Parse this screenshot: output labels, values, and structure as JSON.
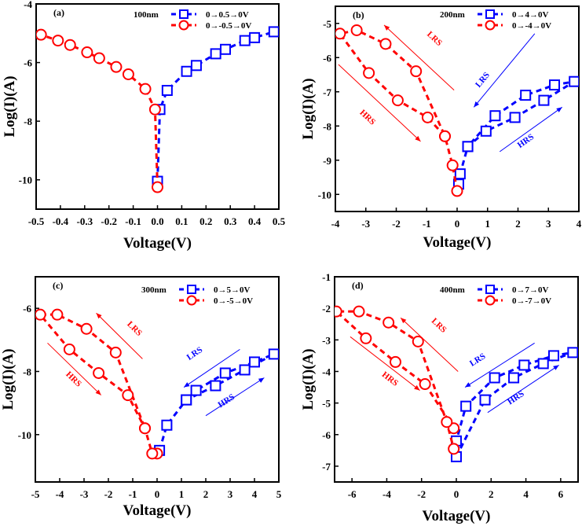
{
  "chart_data": [
    {
      "type": "line",
      "panel_label": "(a)",
      "thickness_label": "100nm",
      "xlabel": "Voltage(V)",
      "ylabel": "Log(I)(A)",
      "xlim": [
        -0.5,
        0.5
      ],
      "ylim": [
        -11,
        -4
      ],
      "xticks": [
        -0.5,
        -0.4,
        -0.3,
        -0.2,
        -0.1,
        0.0,
        0.1,
        0.2,
        0.3,
        0.4,
        0.5
      ],
      "xtick_labels": [
        "-0.5",
        "-0.4",
        "-0.3",
        "-0.2",
        "-0.1",
        "0.0",
        "0.1",
        "0.2",
        "0.3",
        "0.4",
        "0.5"
      ],
      "yticks": [
        -10,
        -8,
        -6,
        -4
      ],
      "ytick_labels": [
        "-10",
        "-8",
        "-6",
        "-4"
      ],
      "legend_position": "top-center",
      "series": [
        {
          "name": "0→0.5→0V",
          "color": "#0000ff",
          "marker": "square",
          "line": "dashed",
          "x": [
            0.0,
            0.01,
            0.04,
            0.12,
            0.16,
            0.24,
            0.28,
            0.36,
            0.4,
            0.48
          ],
          "y": [
            -10.05,
            -7.6,
            -6.95,
            -6.3,
            -6.1,
            -5.7,
            -5.55,
            -5.25,
            -5.15,
            -4.95
          ]
        },
        {
          "name": "0→-0.5→0V",
          "color": "#ff0000",
          "marker": "circle",
          "line": "dashed",
          "x": [
            0.0,
            -0.01,
            -0.05,
            -0.12,
            -0.17,
            -0.24,
            -0.29,
            -0.36,
            -0.41,
            -0.48
          ],
          "y": [
            -10.25,
            -7.6,
            -6.9,
            -6.4,
            -6.15,
            -5.85,
            -5.65,
            -5.4,
            -5.25,
            -5.05
          ]
        }
      ],
      "annotations": []
    },
    {
      "type": "line",
      "panel_label": "(b)",
      "thickness_label": "200nm",
      "xlabel": "Voltage(V)",
      "ylabel": "Log(I)(A)",
      "xlim": [
        -4,
        4
      ],
      "ylim": [
        -10.5,
        -4.5
      ],
      "xticks": [
        -4,
        -3,
        -2,
        -1,
        0,
        1,
        2,
        3,
        4
      ],
      "xtick_labels": [
        "-4",
        "-3",
        "-2",
        "-1",
        "0",
        "1",
        "2",
        "3",
        "4"
      ],
      "yticks": [
        -10,
        -9,
        -8,
        -7,
        -6,
        -5
      ],
      "ytick_labels": [
        "-10",
        "-9",
        "-8",
        "-7",
        "-6",
        "-5"
      ],
      "legend_position": "top-right",
      "series": [
        {
          "name": "0→4→0V",
          "color": "#0000ff",
          "marker": "square",
          "line": "dashed",
          "x": [
            0.05,
            0.1,
            0.35,
            0.95,
            1.9,
            2.85,
            3.85,
            3.2,
            2.25,
            1.25,
            0.35
          ],
          "y": [
            -9.7,
            -9.4,
            -8.6,
            -8.15,
            -7.75,
            -7.25,
            -6.7,
            -6.8,
            -7.1,
            -7.7,
            -8.6
          ]
        },
        {
          "name": "0→-4→0V",
          "color": "#ff0000",
          "marker": "circle",
          "line": "dashed",
          "x": [
            0.0,
            -0.15,
            -0.4,
            -0.97,
            -1.95,
            -2.9,
            -3.85,
            -3.3,
            -2.35,
            -1.35,
            -0.4
          ],
          "y": [
            -9.9,
            -9.15,
            -8.3,
            -7.75,
            -7.25,
            -6.45,
            -5.3,
            -5.2,
            -5.6,
            -6.4,
            -8.3
          ]
        }
      ],
      "annotations": [
        {
          "text": "LRS",
          "color": "#ff0000",
          "arrow": "up-left",
          "from": [
            -0.1,
            -6.95
          ],
          "to": [
            -2.4,
            -5.05
          ],
          "label_at": [
            -0.8,
            -5.5
          ]
        },
        {
          "text": "HRS",
          "color": "#ff0000",
          "arrow": "down-right",
          "from": [
            -3.9,
            -6.2
          ],
          "to": [
            -1.2,
            -8.45
          ],
          "label_at": [
            -3.0,
            -7.8
          ]
        },
        {
          "text": "LRS",
          "color": "#0000ff",
          "arrow": "down-left",
          "from": [
            2.55,
            -5.3
          ],
          "to": [
            0.55,
            -7.45
          ],
          "label_at": [
            0.9,
            -6.7
          ]
        },
        {
          "text": "HRS",
          "color": "#0000ff",
          "arrow": "up-right",
          "from": [
            1.4,
            -8.75
          ],
          "to": [
            3.45,
            -7.45
          ],
          "label_at": [
            2.3,
            -8.5
          ]
        }
      ]
    },
    {
      "type": "line",
      "panel_label": "(c)",
      "thickness_label": "300nm",
      "xlabel": "Voltage(V)",
      "ylabel": "Log(I)(A)",
      "xlim": [
        -5,
        5
      ],
      "ylim": [
        -11.5,
        -5
      ],
      "xticks": [
        -5,
        -4,
        -3,
        -2,
        -1,
        0,
        1,
        2,
        3,
        4,
        5
      ],
      "xtick_labels": [
        "-5",
        "-4",
        "-3",
        "-2",
        "-1",
        "0",
        "1",
        "2",
        "3",
        "4",
        "5"
      ],
      "yticks": [
        -10,
        -8,
        -6
      ],
      "ytick_labels": [
        "-10",
        "-8",
        "-6"
      ],
      "legend_position": "top-right",
      "series": [
        {
          "name": "0→5→0V",
          "color": "#0000ff",
          "marker": "square",
          "line": "dashed",
          "x": [
            0.1,
            0.4,
            1.2,
            2.4,
            3.6,
            4.8,
            4.0,
            2.8,
            1.6,
            1.2
          ],
          "y": [
            -10.5,
            -9.7,
            -8.9,
            -8.45,
            -7.95,
            -7.45,
            -7.7,
            -8.05,
            -8.6,
            -8.9
          ]
        },
        {
          "name": "0→-5→0V",
          "color": "#ff0000",
          "marker": "circle",
          "line": "dashed",
          "x": [
            0.0,
            -0.2,
            -0.5,
            -1.2,
            -2.4,
            -3.6,
            -4.8,
            -4.1,
            -2.9,
            -1.7,
            -0.5
          ],
          "y": [
            -10.6,
            -10.6,
            -9.8,
            -8.75,
            -8.05,
            -7.3,
            -6.2,
            -6.2,
            -6.65,
            -7.4,
            -9.8
          ]
        }
      ],
      "annotations": [
        {
          "text": "LRS",
          "color": "#ff0000",
          "arrow": "up-left",
          "from": [
            -0.6,
            -7.6
          ],
          "to": [
            -2.5,
            -6.15
          ],
          "label_at": [
            -1.0,
            -6.7
          ]
        },
        {
          "text": "HRS",
          "color": "#ff0000",
          "arrow": "down-right",
          "from": [
            -4.5,
            -7.1
          ],
          "to": [
            -2.3,
            -8.75
          ],
          "label_at": [
            -3.5,
            -8.3
          ]
        },
        {
          "text": "LRS",
          "color": "#0000ff",
          "arrow": "down-left",
          "from": [
            3.4,
            -7.3
          ],
          "to": [
            1.1,
            -8.5
          ],
          "label_at": [
            1.6,
            -7.5
          ]
        },
        {
          "text": "HRS",
          "color": "#0000ff",
          "arrow": "up-right",
          "from": [
            2.0,
            -9.4
          ],
          "to": [
            4.4,
            -8.2
          ],
          "label_at": [
            2.9,
            -9.0
          ]
        }
      ]
    },
    {
      "type": "line",
      "panel_label": "(d)",
      "thickness_label": "400nm",
      "xlabel": "Voltage(V)",
      "ylabel": "Log(I)(A)",
      "xlim": [
        -7,
        7
      ],
      "ylim": [
        -7.5,
        -1
      ],
      "xticks": [
        -6,
        -4,
        -2,
        0,
        2,
        4,
        6
      ],
      "xtick_labels": [
        "-6",
        "-4",
        "-2",
        "0",
        "2",
        "4",
        "6"
      ],
      "yticks": [
        -7,
        -6,
        -5,
        -4,
        -3,
        -2,
        -1
      ],
      "ytick_labels": [
        "-7",
        "-6",
        "-5",
        "-4",
        "-3",
        "-2",
        "-1"
      ],
      "legend_position": "top-right",
      "series": [
        {
          "name": "0→7→0V",
          "color": "#0000ff",
          "marker": "square",
          "line": "dashed",
          "x": [
            0.0,
            1.65,
            3.3,
            5.0,
            6.7,
            5.6,
            3.9,
            2.2,
            0.55,
            0.0
          ],
          "y": [
            -6.7,
            -4.9,
            -4.2,
            -3.75,
            -3.4,
            -3.5,
            -3.8,
            -4.2,
            -5.1,
            -6.2
          ]
        },
        {
          "name": "0→-7→0V",
          "color": "#ff0000",
          "marker": "circle",
          "line": "dashed",
          "x": [
            -0.15,
            -1.8,
            -3.5,
            -5.2,
            -6.9,
            -5.6,
            -3.9,
            -2.2,
            -0.55,
            -0.15
          ],
          "y": [
            -5.8,
            -4.4,
            -3.7,
            -2.95,
            -2.1,
            -2.1,
            -2.45,
            -3.05,
            -5.6,
            -6.45
          ]
        }
      ],
      "annotations": [
        {
          "text": "LRS",
          "color": "#ff0000",
          "arrow": "up-left",
          "from": [
            0.1,
            -4.0
          ],
          "to": [
            -3.2,
            -2.3
          ],
          "label_at": [
            -1.1,
            -2.6
          ]
        },
        {
          "text": "HRS",
          "color": "#ff0000",
          "arrow": "down-right",
          "from": [
            -6.1,
            -2.9
          ],
          "to": [
            -2.1,
            -4.6
          ],
          "label_at": [
            -3.9,
            -4.3
          ]
        },
        {
          "text": "LRS",
          "color": "#0000ff",
          "arrow": "down-left",
          "from": [
            4.5,
            -3.1
          ],
          "to": [
            0.5,
            -4.5
          ],
          "label_at": [
            1.3,
            -3.7
          ]
        },
        {
          "text": "HRS",
          "color": "#0000ff",
          "arrow": "up-right",
          "from": [
            1.8,
            -5.3
          ],
          "to": [
            5.9,
            -3.8
          ],
          "label_at": [
            3.5,
            -4.9
          ]
        }
      ]
    }
  ]
}
